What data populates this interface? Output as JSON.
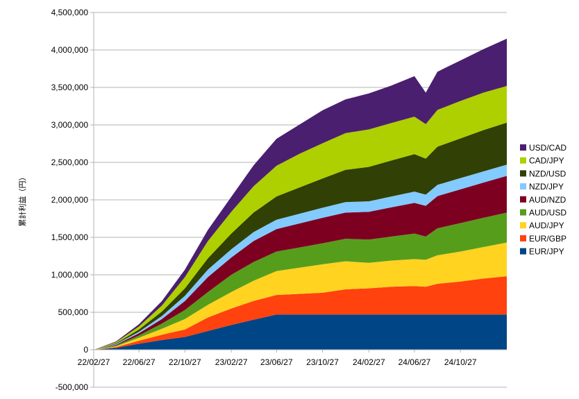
{
  "chart_data": {
    "type": "area",
    "stacked": true,
    "title": "",
    "xlabel": "",
    "ylabel": "累計利益（円）",
    "ylim": [
      -500000,
      4500000
    ],
    "yticks": [
      -500000,
      0,
      500000,
      1000000,
      1500000,
      2000000,
      2500000,
      3000000,
      3500000,
      4000000,
      4500000
    ],
    "ytick_labels": [
      "-500,000",
      "0",
      "500,000",
      "1,000,000",
      "1,500,000",
      "2,000,000",
      "2,500,000",
      "3,000,000",
      "3,500,000",
      "4,000,000",
      "4,500,000"
    ],
    "xlim": [
      "2022-02-27",
      "2025-02-27"
    ],
    "xtick_labels": [
      "22/02/27",
      "22/06/27",
      "22/10/27",
      "23/02/27",
      "23/06/27",
      "23/10/27",
      "24/02/27",
      "24/06/27",
      "24/10/27"
    ],
    "x": [
      "2022-02-27",
      "2022-04-27",
      "2022-06-27",
      "2022-08-27",
      "2022-10-27",
      "2022-12-27",
      "2023-02-27",
      "2023-04-27",
      "2023-06-27",
      "2023-08-27",
      "2023-10-27",
      "2023-12-27",
      "2024-02-27",
      "2024-04-27",
      "2024-06-27",
      "2024-07-27",
      "2024-08-27",
      "2024-10-27",
      "2024-12-27",
      "2025-02-27"
    ],
    "series": [
      {
        "name": "EUR/JPY",
        "color": "#004586",
        "values": [
          0,
          25000,
          80000,
          130000,
          170000,
          250000,
          330000,
          400000,
          470000,
          470000,
          470000,
          470000,
          470000,
          470000,
          470000,
          470000,
          470000,
          470000,
          470000,
          470000
        ]
      },
      {
        "name": "EUR/GBP",
        "color": "#FF420E",
        "values": [
          0,
          10000,
          40000,
          70000,
          100000,
          180000,
          220000,
          250000,
          260000,
          275000,
          290000,
          335000,
          350000,
          370000,
          380000,
          370000,
          410000,
          440000,
          480000,
          510000
        ]
      },
      {
        "name": "AUD/JPY",
        "color": "#FFD320",
        "values": [
          0,
          10000,
          40000,
          80000,
          140000,
          170000,
          220000,
          270000,
          320000,
          350000,
          380000,
          375000,
          340000,
          350000,
          360000,
          360000,
          380000,
          400000,
          420000,
          450000
        ]
      },
      {
        "name": "AUD/USD",
        "color": "#579D1C",
        "values": [
          0,
          10000,
          30000,
          70000,
          120000,
          170000,
          230000,
          250000,
          260000,
          270000,
          280000,
          300000,
          310000,
          320000,
          340000,
          310000,
          360000,
          380000,
          390000,
          400000
        ]
      },
      {
        "name": "AUD/NZD",
        "color": "#7E0021",
        "values": [
          0,
          10000,
          30000,
          60000,
          120000,
          200000,
          230000,
          280000,
          300000,
          320000,
          340000,
          350000,
          370000,
          390000,
          410000,
          410000,
          430000,
          450000,
          470000,
          490000
        ]
      },
      {
        "name": "NZD/JPY",
        "color": "#83CAFF",
        "values": [
          0,
          10000,
          20000,
          40000,
          70000,
          100000,
          110000,
          120000,
          125000,
          130000,
          135000,
          140000,
          140000,
          145000,
          150000,
          150000,
          150000,
          150000,
          150000,
          150000
        ]
      },
      {
        "name": "NZD/USD",
        "color": "#314004",
        "values": [
          0,
          10000,
          30000,
          60000,
          100000,
          150000,
          210000,
          260000,
          310000,
          350000,
          390000,
          430000,
          460000,
          480000,
          500000,
          480000,
          510000,
          530000,
          550000,
          560000
        ]
      },
      {
        "name": "CAD/JPY",
        "color": "#AECF00",
        "values": [
          0,
          15000,
          40000,
          80000,
          150000,
          230000,
          290000,
          350000,
          410000,
          450000,
          470000,
          490000,
          500000,
          500000,
          500000,
          460000,
          490000,
          500000,
          500000,
          490000
        ]
      },
      {
        "name": "USD/CAD",
        "color": "#4B1F6F",
        "values": [
          0,
          10000,
          30000,
          60000,
          100000,
          150000,
          200000,
          280000,
          360000,
          390000,
          440000,
          450000,
          480000,
          500000,
          540000,
          420000,
          510000,
          540000,
          580000,
          630000
        ]
      }
    ],
    "legend": {
      "placement": "right",
      "order": [
        "USD/CAD",
        "CAD/JPY",
        "NZD/USD",
        "NZD/JPY",
        "AUD/NZD",
        "AUD/USD",
        "AUD/JPY",
        "EUR/GBP",
        "EUR/JPY"
      ]
    },
    "grid": {
      "horizontal": true,
      "vertical": false,
      "color": "#b3b3b3"
    }
  }
}
